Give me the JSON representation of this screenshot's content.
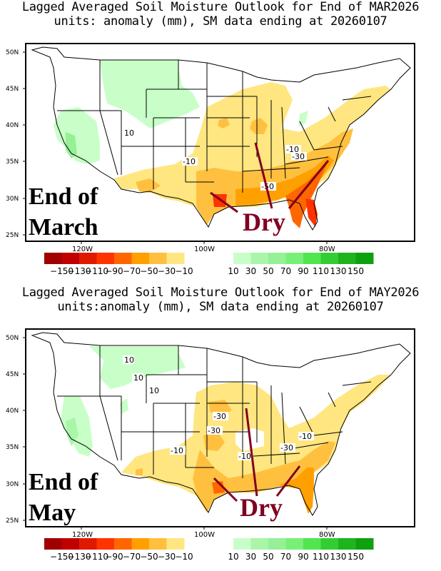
{
  "panels": [
    {
      "id": "march",
      "title_line1": "Lagged Averaged Soil Moisture Outlook for End of MAR2026",
      "title_line2": "units: anomaly (mm), SM data ending at 20260107",
      "overlay_line1": "End of",
      "overlay_line2": "March",
      "dry_label": "Dry",
      "contour_labels": [
        "10",
        "-10",
        "-10",
        "-30",
        "-50"
      ]
    },
    {
      "id": "may",
      "title_line1": "Lagged Averaged Soil Moisture Outlook for End of MAY2026",
      "title_line2": "units:anomaly (mm), SM data ending at 20260107",
      "overlay_line1": "End of",
      "overlay_line2": "May",
      "dry_label": "Dry",
      "contour_labels": [
        "10",
        "10",
        "10",
        "-10",
        "-30",
        "-30",
        "-10",
        "-30",
        "-10"
      ]
    }
  ],
  "axes": {
    "lat_ticks": [
      "50N",
      "45N",
      "40N",
      "35N",
      "30N",
      "25N"
    ],
    "lon_ticks": [
      "120W",
      "100W",
      "80W"
    ]
  },
  "colorbar": {
    "dry_colors": [
      "#a00000",
      "#c00000",
      "#e01a00",
      "#ff3300",
      "#ff6600",
      "#ffa000",
      "#ffc040",
      "#ffe680"
    ],
    "wet_colors": [
      "#c8ffc8",
      "#aaf5aa",
      "#96f096",
      "#78f078",
      "#50e650",
      "#32cd32",
      "#1eb41e",
      "#0fa00f"
    ],
    "labels": [
      "-150",
      "-130",
      "-110",
      "-90",
      "-70",
      "-50",
      "-30",
      "-10",
      "10",
      "30",
      "50",
      "70",
      "90",
      "110",
      "130",
      "150"
    ]
  },
  "colors": {
    "dry_label": "#800020",
    "arrow": "#800020"
  }
}
